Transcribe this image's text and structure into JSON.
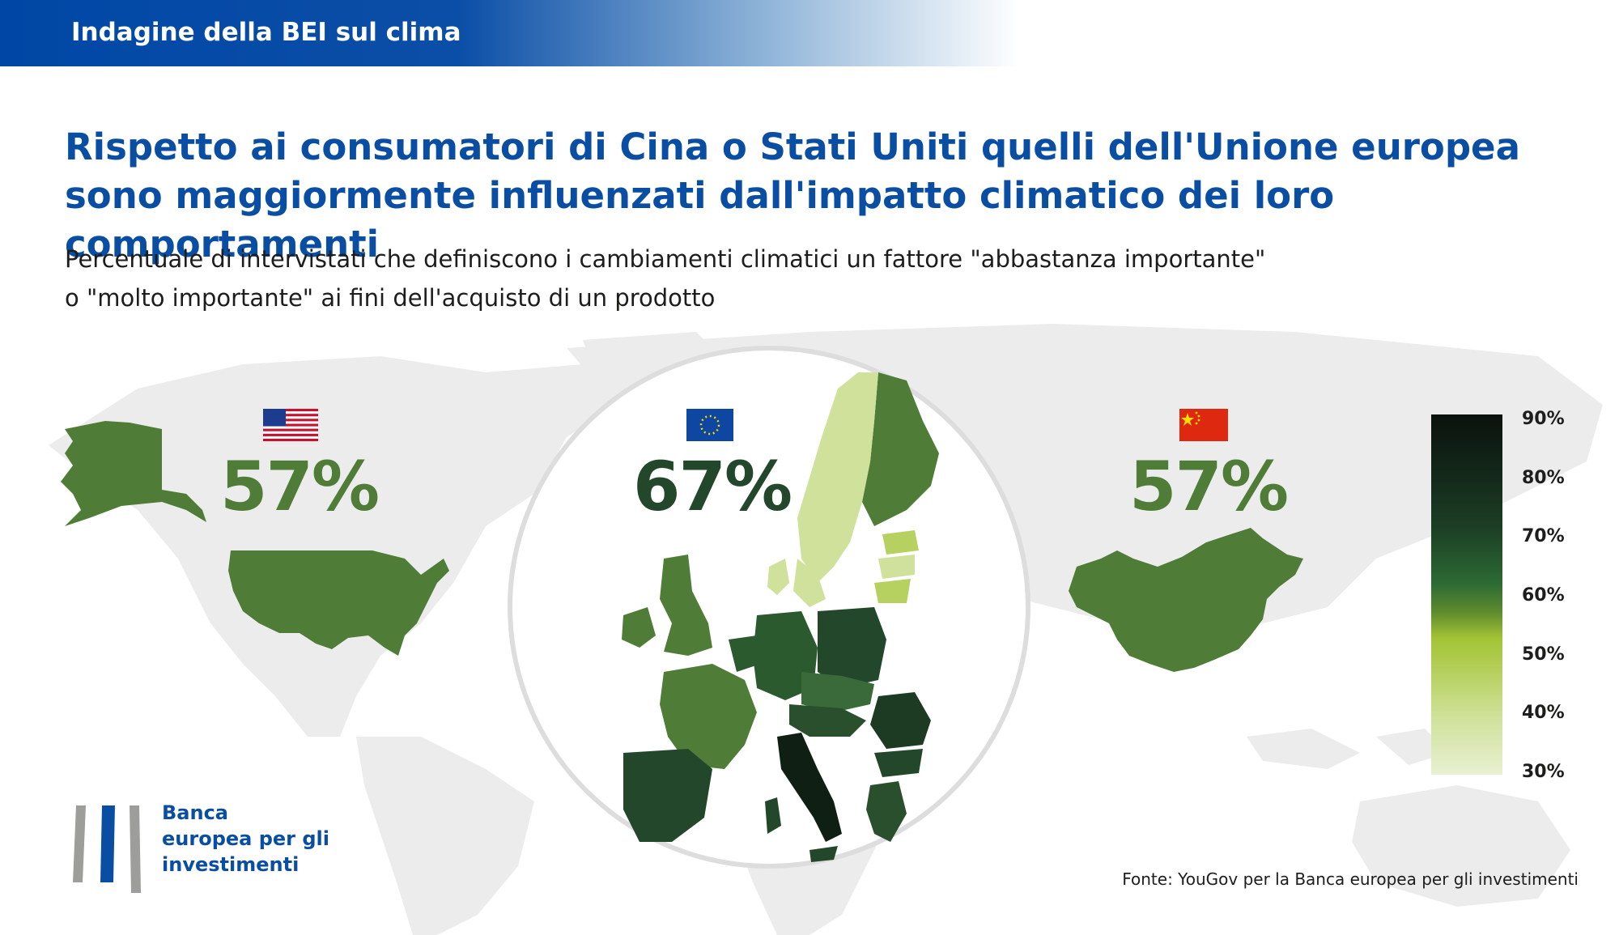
{
  "banner": {
    "text": "Indagine della BEI sul clima"
  },
  "title": "Rispetto ai consumatori di Cina o Stati Uniti quelli dell'Unione europea sono maggiormente influenzati dall'impatto climatico dei loro comportamenti",
  "subtitle_line1": "Percentuale di intervistati che definiscono i cambiamenti climatici un fattore \"abbastanza importante\"",
  "subtitle_line2": "o \"molto importante\" ai fini dell'acquisto di un prodotto",
  "regions": [
    {
      "name": "USA",
      "value": "57%",
      "flag": "us-flag-icon",
      "color": "#4f7d37"
    },
    {
      "name": "EU",
      "value": "67%",
      "flag": "eu-flag-icon",
      "color": "#23472a"
    },
    {
      "name": "China",
      "value": "57%",
      "flag": "china-flag-icon",
      "color": "#4f7d37"
    }
  ],
  "legend": {
    "ticks": [
      "90%",
      "80%",
      "70%",
      "60%",
      "50%",
      "40%",
      "30%"
    ]
  },
  "logo": {
    "line1": "Banca",
    "line2": "europea per gli",
    "line3": "investimenti",
    "icon": "eib-logo-icon"
  },
  "source": "Fonte: YouGov per la Banca europea per gli investimenti",
  "colors": {
    "brand_blue": "#0a4ea3",
    "map_gray": "#ececec",
    "green_57": "#4f7d37",
    "green_67": "#23472a"
  }
}
